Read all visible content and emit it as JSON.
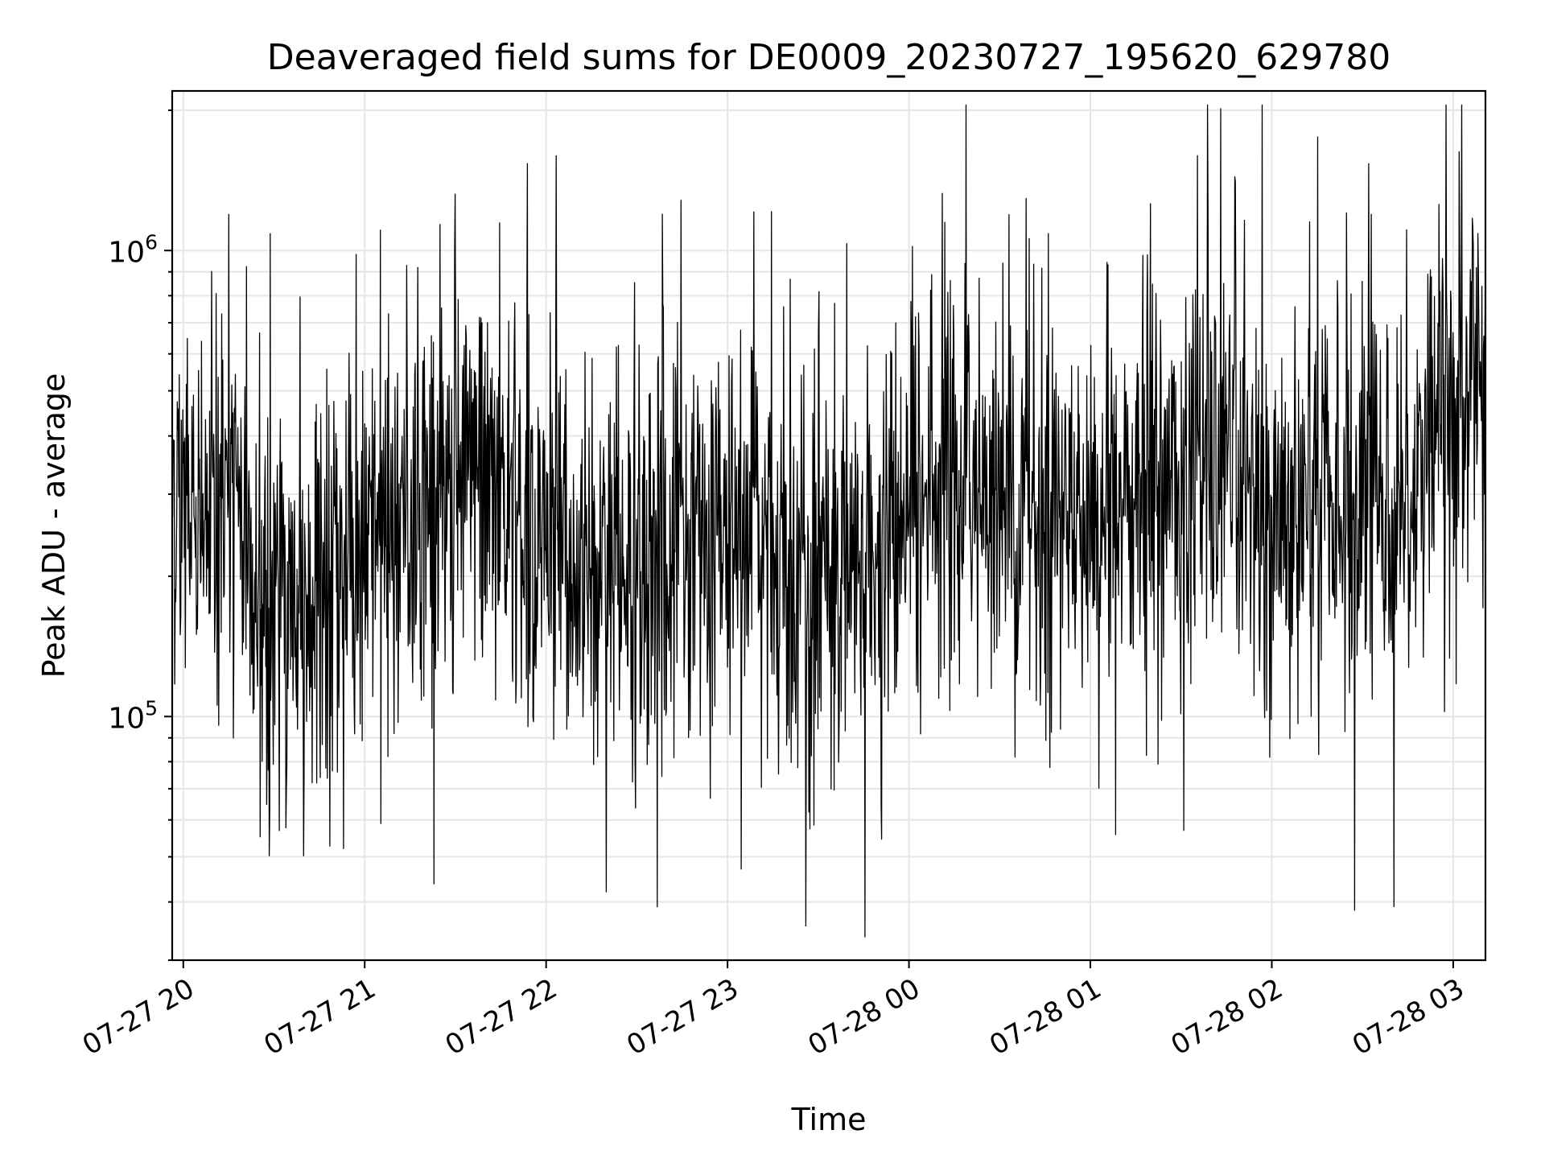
{
  "chart_data": {
    "type": "line",
    "title": "Deaveraged field sums for DE0009_20230727_195620_629780",
    "xlabel": "Time",
    "ylabel": "Peak ADU - average",
    "yscale": "log",
    "ylim": [
      30000,
      2200000
    ],
    "xlim": [
      "2023-07-27 19:56:20",
      "2023-07-28 03:10:40"
    ],
    "x_ticks": [
      {
        "value": "2023-07-27 20:00:00",
        "label": "07-27 20"
      },
      {
        "value": "2023-07-27 21:00:00",
        "label": "07-27 21"
      },
      {
        "value": "2023-07-27 22:00:00",
        "label": "07-27 22"
      },
      {
        "value": "2023-07-27 23:00:00",
        "label": "07-27 23"
      },
      {
        "value": "2023-07-28 00:00:00",
        "label": "07-28 00"
      },
      {
        "value": "2023-07-28 01:00:00",
        "label": "07-28 01"
      },
      {
        "value": "2023-07-28 02:00:00",
        "label": "07-28 02"
      },
      {
        "value": "2023-07-28 03:00:00",
        "label": "07-28 03"
      }
    ],
    "y_ticks": [
      {
        "value": 100000,
        "base": "10",
        "exp": "5"
      },
      {
        "value": 1000000,
        "base": "10",
        "exp": "6"
      }
    ],
    "grid": true,
    "legend": "none",
    "line_color": "#000000",
    "series": [
      {
        "x": [
          "2023-07-27 19:56:20",
          "2023-07-27 20:00:00",
          "2023-07-27 20:05:00",
          "2023-07-27 20:10:00",
          "2023-07-27 20:15:00",
          "2023-07-27 20:20:00",
          "2023-07-27 20:25:00",
          "2023-07-27 20:30:00",
          "2023-07-27 20:35:00",
          "2023-07-27 20:40:00",
          "2023-07-27 20:45:00",
          "2023-07-27 20:50:00",
          "2023-07-27 20:55:00",
          "2023-07-27 21:00:00",
          "2023-07-27 21:05:00",
          "2023-07-27 21:10:00",
          "2023-07-27 21:15:00",
          "2023-07-27 21:20:00",
          "2023-07-27 21:25:00",
          "2023-07-27 21:30:00",
          "2023-07-27 21:35:00",
          "2023-07-27 21:40:00",
          "2023-07-27 21:45:00",
          "2023-07-27 21:50:00",
          "2023-07-27 21:55:00",
          "2023-07-27 22:00:00",
          "2023-07-27 22:05:00",
          "2023-07-27 22:10:00",
          "2023-07-27 22:15:00",
          "2023-07-27 22:20:00",
          "2023-07-27 22:25:00",
          "2023-07-27 22:30:00",
          "2023-07-27 22:35:00",
          "2023-07-27 22:40:00",
          "2023-07-27 22:45:00",
          "2023-07-27 22:50:00",
          "2023-07-27 22:55:00",
          "2023-07-27 23:00:00",
          "2023-07-27 23:05:00",
          "2023-07-27 23:10:00",
          "2023-07-27 23:15:00",
          "2023-07-27 23:20:00",
          "2023-07-27 23:25:00",
          "2023-07-27 23:30:00",
          "2023-07-27 23:35:00",
          "2023-07-27 23:40:00",
          "2023-07-27 23:45:00",
          "2023-07-27 23:50:00",
          "2023-07-27 23:55:00",
          "2023-07-28 00:00:00",
          "2023-07-28 00:05:00",
          "2023-07-28 00:10:00",
          "2023-07-28 00:15:00",
          "2023-07-28 00:20:00",
          "2023-07-28 00:25:00",
          "2023-07-28 00:30:00",
          "2023-07-28 00:35:00",
          "2023-07-28 00:40:00",
          "2023-07-28 00:45:00",
          "2023-07-28 00:50:00",
          "2023-07-28 00:55:00",
          "2023-07-28 01:00:00",
          "2023-07-28 01:05:00",
          "2023-07-28 01:10:00",
          "2023-07-28 01:15:00",
          "2023-07-28 01:20:00",
          "2023-07-28 01:25:00",
          "2023-07-28 01:30:00",
          "2023-07-28 01:35:00",
          "2023-07-28 01:40:00",
          "2023-07-28 01:45:00",
          "2023-07-28 01:50:00",
          "2023-07-28 01:55:00",
          "2023-07-28 02:00:00",
          "2023-07-28 02:05:00",
          "2023-07-28 02:10:00",
          "2023-07-28 02:15:00",
          "2023-07-28 02:20:00",
          "2023-07-28 02:25:00",
          "2023-07-28 02:30:00",
          "2023-07-28 02:35:00",
          "2023-07-28 02:40:00",
          "2023-07-28 02:45:00",
          "2023-07-28 02:50:00",
          "2023-07-28 02:55:00",
          "2023-07-28 03:00:00",
          "2023-07-28 03:05:00",
          "2023-07-28 03:10:40"
        ],
        "values": [
          330000,
          280000,
          260000,
          250000,
          300000,
          220000,
          180000,
          170000,
          190000,
          160000,
          175000,
          185000,
          190000,
          200000,
          250000,
          270000,
          280000,
          300000,
          310000,
          290000,
          320000,
          310000,
          300000,
          280000,
          250000,
          240000,
          230000,
          220000,
          210000,
          200000,
          210000,
          215000,
          220000,
          230000,
          240000,
          250000,
          255000,
          260000,
          255000,
          250000,
          240000,
          220000,
          210000,
          200000,
          195000,
          200000,
          210000,
          230000,
          250000,
          270000,
          290000,
          320000,
          330000,
          320000,
          310000,
          300000,
          290000,
          280000,
          270000,
          260000,
          265000,
          270000,
          275000,
          280000,
          290000,
          300000,
          310000,
          320000,
          330000,
          320000,
          310000,
          300000,
          290000,
          280000,
          275000,
          270000,
          265000,
          270000,
          275000,
          280000,
          290000,
          300000,
          320000,
          350000,
          420000,
          480000,
          520000,
          550000
        ]
      }
    ]
  }
}
